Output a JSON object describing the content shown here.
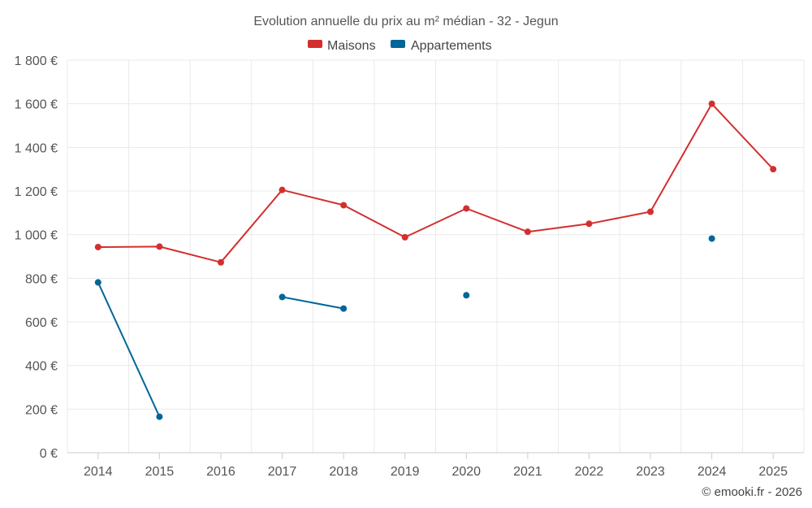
{
  "chart_data": {
    "type": "line",
    "title": "Evolution annuelle du prix au m² médian - 32 - Jegun",
    "categories": [
      "2014",
      "2015",
      "2016",
      "2017",
      "2018",
      "2019",
      "2020",
      "2021",
      "2022",
      "2023",
      "2024",
      "2025"
    ],
    "y_ticks": [
      "0 €",
      "200 €",
      "400 €",
      "600 €",
      "800 €",
      "1 000 €",
      "1 200 €",
      "1 400 €",
      "1 600 €",
      "1 800 €"
    ],
    "ylim": [
      0,
      1800
    ],
    "grid": true,
    "legend_position": "top-center",
    "series": [
      {
        "name": "Maisons",
        "color": "#d32f2f",
        "values": [
          943,
          945,
          873,
          1205,
          1135,
          988,
          1120,
          1013,
          1050,
          1105,
          1600,
          1300
        ]
      },
      {
        "name": "Appartements",
        "color": "#006699",
        "values": [
          781,
          165,
          null,
          714,
          661,
          null,
          722,
          null,
          null,
          null,
          982,
          null
        ]
      }
    ]
  },
  "credit": "© emooki.fr - 2026"
}
